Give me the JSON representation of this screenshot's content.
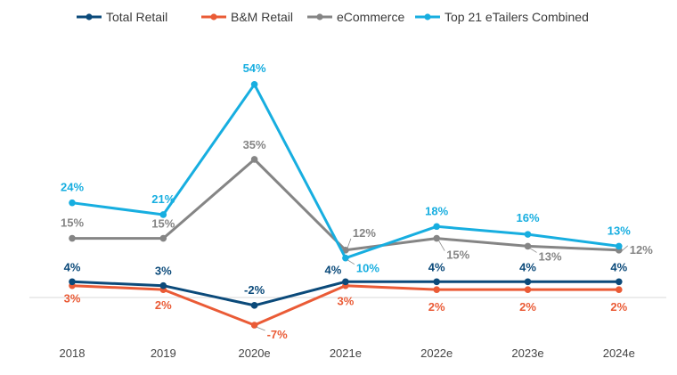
{
  "chart_data": {
    "type": "line",
    "title": "",
    "xlabel": "",
    "ylabel": "",
    "categories": [
      "2018",
      "2019",
      "2020e",
      "2021e",
      "2022e",
      "2023e",
      "2024e"
    ],
    "ylim": [
      -9,
      58
    ],
    "grid": false,
    "legend": "top",
    "series": [
      {
        "name": "Total Retail",
        "color": "#0b4a7a",
        "values": [
          4,
          3,
          -2,
          4,
          4,
          4,
          4
        ],
        "labels": [
          "4%",
          "3%",
          "-2%",
          "4%",
          "4%",
          "4%",
          "4%"
        ]
      },
      {
        "name": "B&M Retail",
        "color": "#ea5b36",
        "values": [
          3,
          2,
          -7,
          3,
          2,
          2,
          2
        ],
        "labels": [
          "3%",
          "2%",
          "-7%",
          "3%",
          "2%",
          "2%",
          "2%"
        ]
      },
      {
        "name": "eCommerce",
        "color": "#858585",
        "values": [
          15,
          15,
          35,
          12,
          15,
          13,
          12
        ],
        "labels": [
          "15%",
          "15%",
          "35%",
          "12%",
          "15%",
          "13%",
          "12%"
        ]
      },
      {
        "name": "Top 21 eTailers Combined",
        "color": "#17aee0",
        "values": [
          24,
          21,
          54,
          10,
          18,
          16,
          13
        ],
        "labels": [
          "24%",
          "21%",
          "54%",
          "10%",
          "18%",
          "16%",
          "13%"
        ]
      }
    ]
  }
}
